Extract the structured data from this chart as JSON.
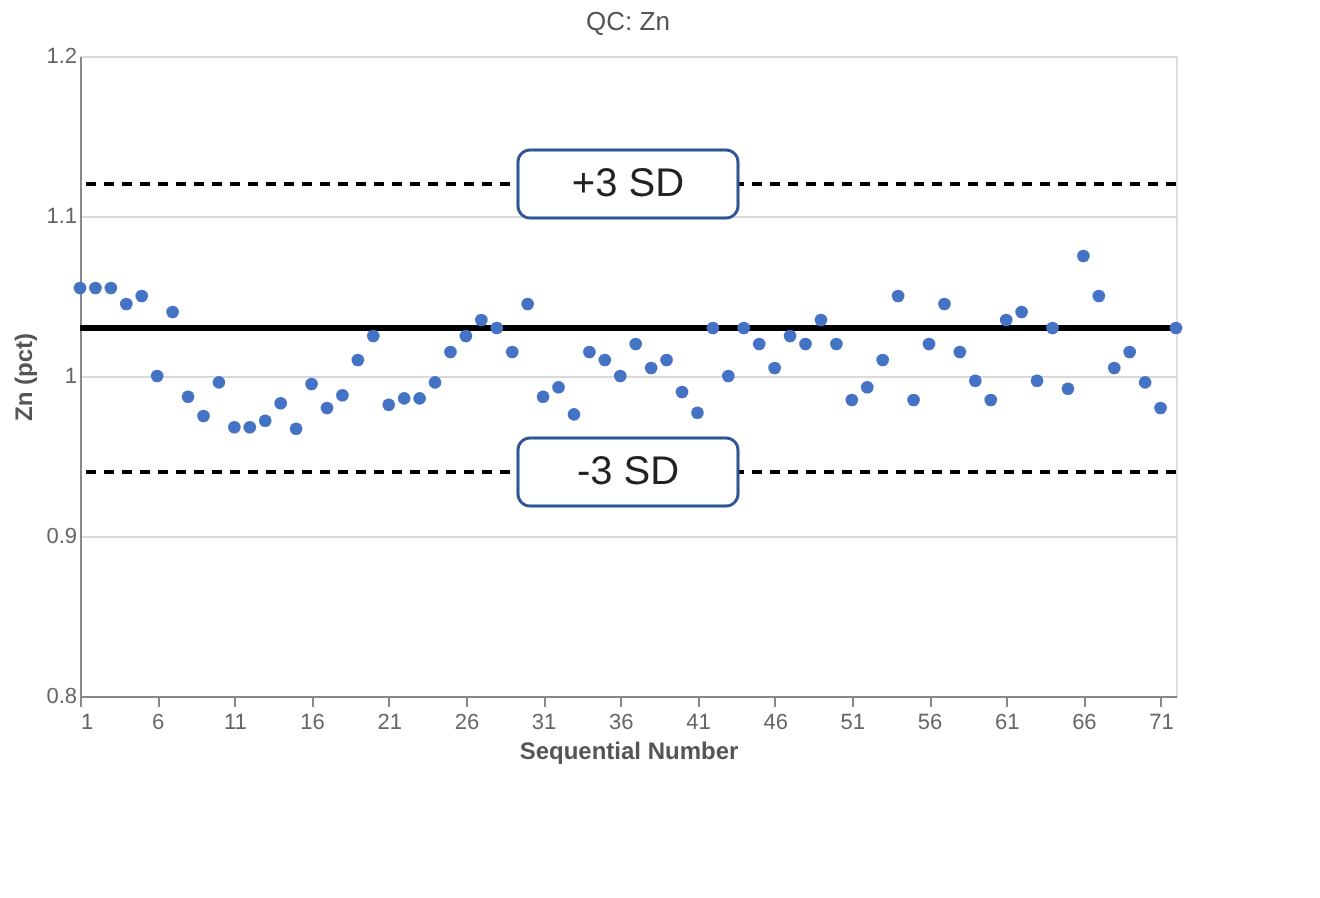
{
  "chart_data": {
    "type": "scatter",
    "title": "QC: Zn",
    "xlabel": "Sequential Number",
    "ylabel": "Zn (pct)",
    "x": [
      1,
      2,
      3,
      4,
      5,
      6,
      7,
      8,
      9,
      10,
      11,
      12,
      13,
      14,
      15,
      16,
      17,
      18,
      19,
      20,
      21,
      22,
      23,
      24,
      25,
      26,
      27,
      28,
      29,
      30,
      31,
      32,
      33,
      34,
      35,
      36,
      37,
      38,
      39,
      40,
      41,
      42,
      43,
      44,
      45,
      46,
      47,
      48,
      49,
      50,
      51,
      52,
      53,
      54,
      55,
      56,
      57,
      58,
      59,
      60,
      61,
      62,
      63,
      64,
      65,
      66,
      67,
      68,
      69,
      70,
      71,
      72
    ],
    "series": [
      {
        "color": "#4472c4",
        "values": [
          1.055,
          1.055,
          1.055,
          1.045,
          1.05,
          1.0,
          1.04,
          0.987,
          0.975,
          0.996,
          0.968,
          0.968,
          0.972,
          0.983,
          0.967,
          0.995,
          0.98,
          0.988,
          1.01,
          1.025,
          0.982,
          0.986,
          0.986,
          0.996,
          1.015,
          1.025,
          1.035,
          1.03,
          1.015,
          1.045,
          0.987,
          0.993,
          0.976,
          1.015,
          1.01,
          1.0,
          1.02,
          1.005,
          1.01,
          0.99,
          0.977,
          1.03,
          1.0,
          1.03,
          1.02,
          1.005,
          1.025,
          1.02,
          1.035,
          1.02,
          0.985,
          0.993,
          1.01,
          1.05,
          0.985,
          1.02,
          1.045,
          1.015,
          0.997,
          0.985,
          1.035,
          1.04,
          0.997,
          1.03,
          0.992,
          1.075,
          1.05,
          1.005,
          1.015,
          0.996,
          0.98,
          1.03
        ]
      }
    ],
    "xlim": [
      1,
      72
    ],
    "xticks": [
      1,
      6,
      11,
      16,
      21,
      26,
      31,
      36,
      41,
      46,
      51,
      56,
      61,
      66,
      71
    ],
    "ylim": [
      0.8,
      1.2
    ],
    "yticks": [
      0.8,
      0.9,
      1,
      1.1,
      1.2
    ],
    "ref_lines": [
      {
        "axis": "y",
        "value": 1.03,
        "color": "#000000",
        "line_style": "solid"
      },
      {
        "axis": "y",
        "value": 1.12,
        "label": "+3 SD",
        "color": "#000000",
        "line_style": "dashed"
      },
      {
        "axis": "y",
        "value": 0.94,
        "label": "-3 SD",
        "color": "#000000",
        "line_style": "dashed"
      }
    ],
    "grid": "y",
    "marker": "circle",
    "legend": false
  }
}
